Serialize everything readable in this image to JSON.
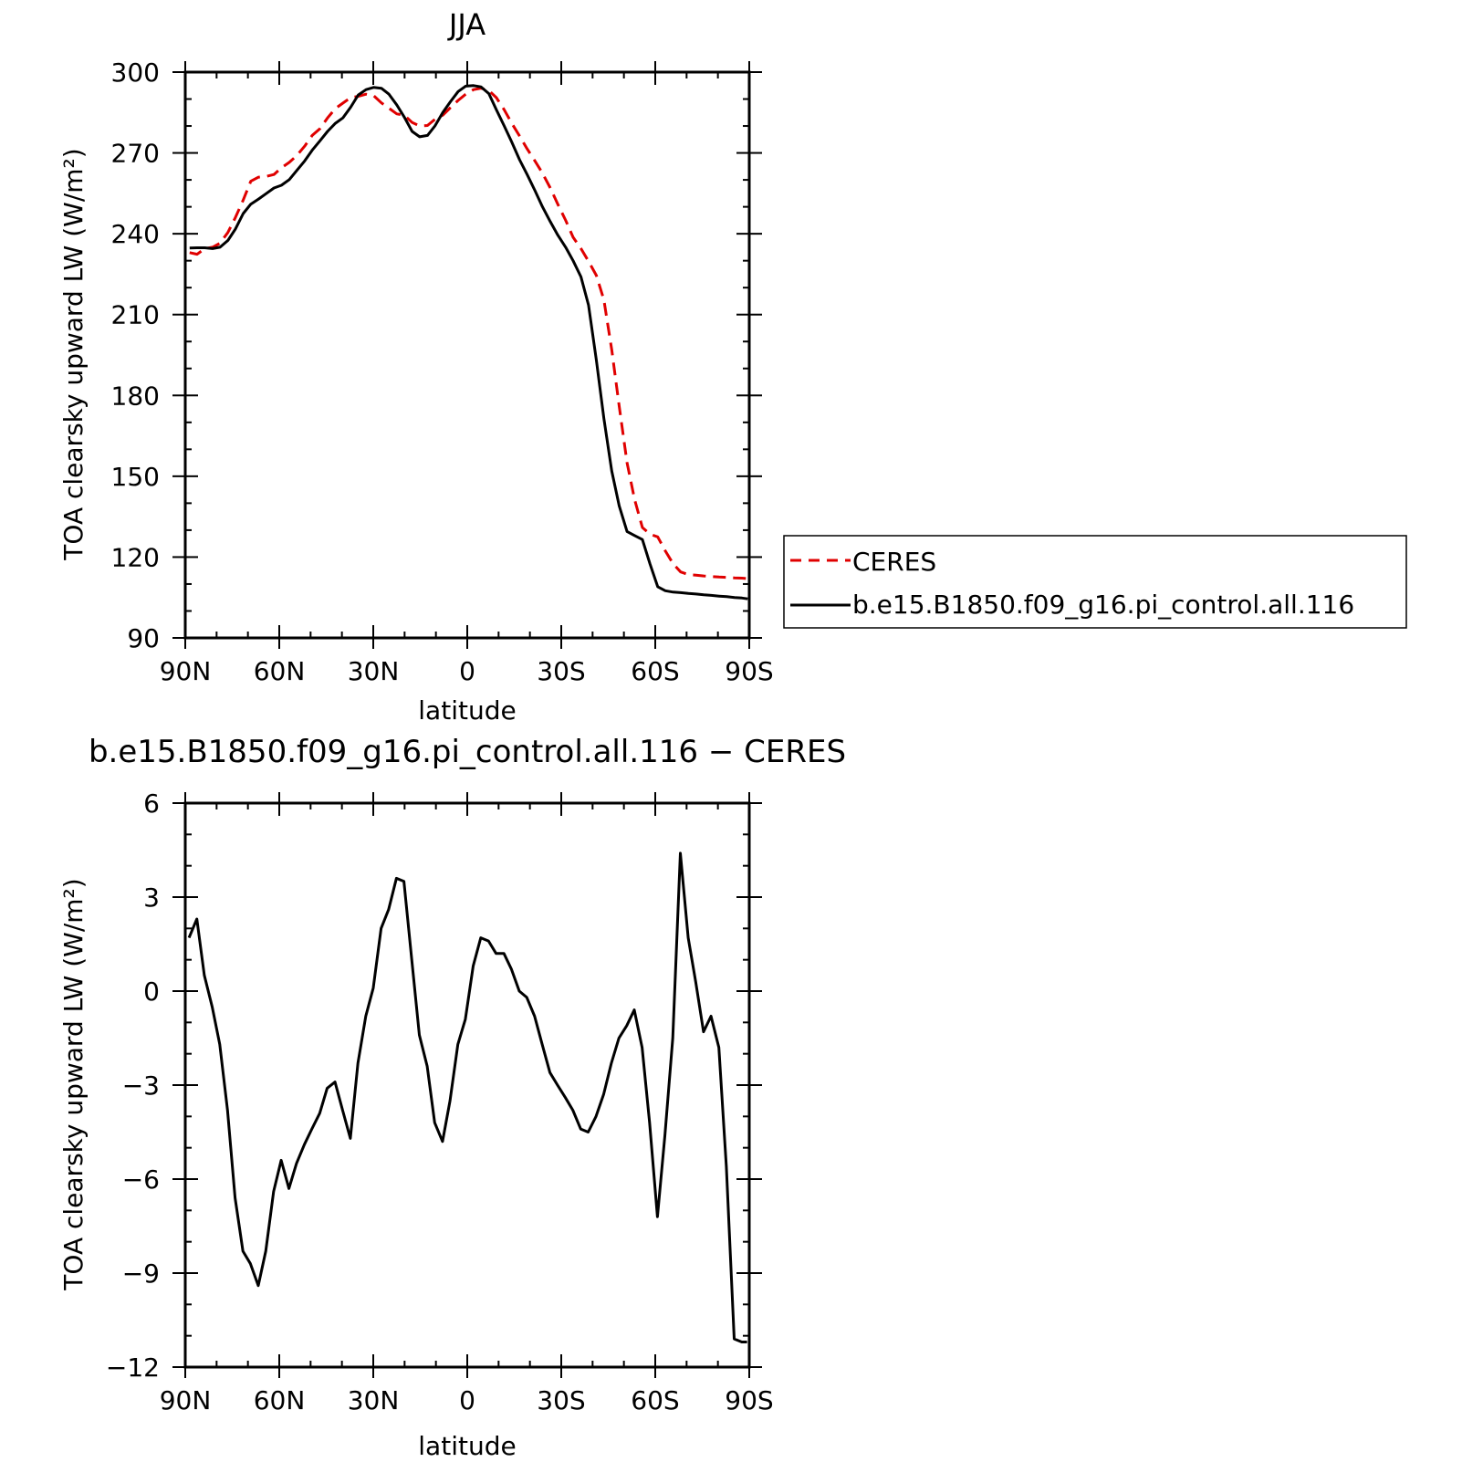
{
  "chart_data": [
    {
      "type": "line",
      "title": "JJA",
      "xlabel": "latitude",
      "ylabel": "TOA clearsky upward LW (W/m²)",
      "xlim": [
        90,
        -90
      ],
      "ylim": [
        90,
        300
      ],
      "x_ticks": [
        90,
        60,
        30,
        0,
        -30,
        -60,
        -90
      ],
      "x_tick_labels": [
        "90N",
        "60N",
        "30N",
        "0",
        "30S",
        "60S",
        "90S"
      ],
      "y_ticks": [
        90,
        120,
        150,
        180,
        210,
        240,
        270,
        300
      ],
      "y_tick_labels": [
        "90",
        "120",
        "150",
        "180",
        "210",
        "240",
        "270",
        "300"
      ],
      "legend": "right",
      "x": [
        88.6,
        86.2,
        83.8,
        81.3,
        78.9,
        76.4,
        74.0,
        71.5,
        69.1,
        66.6,
        64.2,
        61.7,
        59.3,
        56.8,
        54.4,
        51.9,
        49.5,
        47.0,
        44.6,
        42.1,
        39.7,
        37.2,
        34.8,
        32.3,
        29.9,
        27.4,
        25.0,
        22.5,
        20.1,
        17.6,
        15.2,
        12.7,
        10.3,
        7.8,
        5.4,
        2.9,
        0.5,
        -2.0,
        -4.4,
        -6.9,
        -9.3,
        -11.8,
        -14.2,
        -16.7,
        -19.1,
        -21.6,
        -24.0,
        -26.5,
        -28.9,
        -31.4,
        -33.8,
        -36.3,
        -38.7,
        -41.2,
        -43.6,
        -46.1,
        -48.5,
        -51.0,
        -53.4,
        -55.9,
        -58.3,
        -60.8,
        -63.2,
        -65.7,
        -68.1,
        -70.6,
        -73.0,
        -75.5,
        -77.9,
        -80.4,
        -82.8,
        -85.3,
        -87.7,
        -89.5
      ],
      "series": [
        {
          "name": "CERES",
          "color": "#e00000",
          "dash": "dashed",
          "values": [
            233.0,
            232.4,
            234.5,
            235.0,
            236.5,
            240.5,
            246.0,
            252.5,
            259.5,
            261.0,
            261.3,
            262.0,
            264.5,
            266.5,
            269.0,
            272.5,
            276.5,
            279.0,
            283.0,
            286.5,
            288.5,
            290.5,
            291.0,
            291.8,
            291.3,
            288.6,
            286.6,
            284.5,
            284.0,
            281.3,
            280.0,
            280.2,
            282.5,
            284.0,
            286.8,
            289.5,
            291.8,
            293.5,
            294.0,
            293.2,
            290.5,
            286.0,
            281.0,
            276.3,
            271.5,
            267.0,
            262.5,
            257.0,
            251.0,
            245.0,
            238.7,
            234.5,
            229.8,
            224.5,
            215.5,
            197.0,
            176.0,
            155.0,
            141.5,
            131.0,
            128.5,
            127.5,
            122.3,
            117.5,
            114.5,
            113.5,
            113.3,
            113.0,
            112.8,
            112.6,
            112.5,
            112.3,
            112.2,
            112.0
          ]
        },
        {
          "name": "b.e15.B1850.f09_g16.pi_control.all.116",
          "color": "#000000",
          "dash": "solid",
          "values": [
            234.7,
            234.8,
            234.8,
            234.5,
            235.0,
            237.5,
            241.7,
            247.5,
            251.0,
            252.9,
            254.9,
            257.0,
            258.0,
            260.1,
            263.5,
            267.0,
            271.0,
            274.5,
            278.0,
            281.0,
            283.0,
            287.0,
            291.5,
            293.5,
            294.3,
            294.0,
            291.8,
            287.8,
            283.3,
            278.0,
            276.0,
            276.5,
            280.0,
            285.0,
            289.0,
            292.8,
            294.8,
            295.0,
            294.5,
            292.0,
            286.0,
            280.0,
            274.0,
            267.5,
            262.0,
            256.0,
            250.0,
            244.5,
            239.5,
            235.0,
            230.0,
            224.0,
            213.5,
            193.0,
            171.5,
            152.0,
            139.0,
            129.5,
            128.0,
            126.5,
            117.5,
            109.0,
            107.5,
            107.0,
            106.8,
            106.5,
            106.3,
            106.0,
            105.8,
            105.5,
            105.3,
            105.0,
            104.8,
            104.5
          ]
        }
      ]
    },
    {
      "type": "line",
      "title": "b.e15.B1850.f09_g16.pi_control.all.116 − CERES",
      "xlabel": "latitude",
      "ylabel": "TOA clearsky upward LW (W/m²)",
      "xlim": [
        90,
        -90
      ],
      "ylim": [
        -12,
        6
      ],
      "x_ticks": [
        90,
        60,
        30,
        0,
        -30,
        -60,
        -90
      ],
      "x_tick_labels": [
        "90N",
        "60N",
        "30N",
        "0",
        "30S",
        "60S",
        "90S"
      ],
      "y_ticks": [
        6,
        3,
        0,
        -3,
        -6,
        -9,
        -12
      ],
      "y_tick_labels": [
        "6",
        "3",
        "0",
        "−3",
        "−6",
        "−9",
        "−12"
      ],
      "x": [
        88.8,
        86.3,
        83.9,
        81.4,
        79.0,
        76.5,
        74.1,
        71.6,
        69.2,
        66.7,
        64.3,
        61.8,
        59.4,
        56.9,
        54.5,
        52.0,
        49.6,
        47.1,
        44.7,
        42.2,
        39.8,
        37.3,
        34.9,
        32.4,
        30.0,
        27.5,
        25.1,
        22.6,
        20.2,
        17.7,
        15.3,
        12.8,
        10.4,
        7.9,
        5.5,
        3.0,
        0.6,
        -1.9,
        -4.3,
        -6.8,
        -9.2,
        -11.7,
        -14.1,
        -16.6,
        -19.0,
        -21.5,
        -23.9,
        -26.4,
        -28.8,
        -31.3,
        -33.7,
        -36.2,
        -38.6,
        -41.1,
        -43.5,
        -46.0,
        -48.4,
        -50.9,
        -53.3,
        -55.8,
        -58.2,
        -60.7,
        -63.1,
        -65.6,
        -68.0,
        -70.5,
        -72.9,
        -75.4,
        -77.8,
        -80.3,
        -82.7,
        -85.2,
        -87.6,
        -89.3
      ],
      "series": [
        {
          "name": "",
          "color": "#000000",
          "dash": "solid",
          "values": [
            1.7,
            2.3,
            0.5,
            -0.5,
            -1.7,
            -3.8,
            -6.6,
            -8.3,
            -8.7,
            -9.4,
            -8.3,
            -6.4,
            -5.4,
            -6.3,
            -5.5,
            -4.9,
            -4.4,
            -3.9,
            -3.1,
            -2.9,
            -3.8,
            -4.7,
            -2.3,
            -0.8,
            0.1,
            2.0,
            2.6,
            3.6,
            3.5,
            1.0,
            -1.4,
            -2.4,
            -4.2,
            -4.8,
            -3.5,
            -1.7,
            -0.9,
            0.8,
            1.7,
            1.6,
            1.2,
            1.2,
            0.7,
            0.0,
            -0.2,
            -0.8,
            -1.7,
            -2.6,
            -3.0,
            -3.4,
            -3.8,
            -4.4,
            -4.5,
            -4.0,
            -3.3,
            -2.3,
            -1.5,
            -1.1,
            -0.6,
            -1.8,
            -4.2,
            -7.2,
            -4.6,
            -1.5,
            4.4,
            1.7,
            0.3,
            -1.3,
            -0.8,
            -1.8,
            -5.6,
            -11.1,
            -11.2,
            -11.2
          ]
        }
      ]
    }
  ]
}
